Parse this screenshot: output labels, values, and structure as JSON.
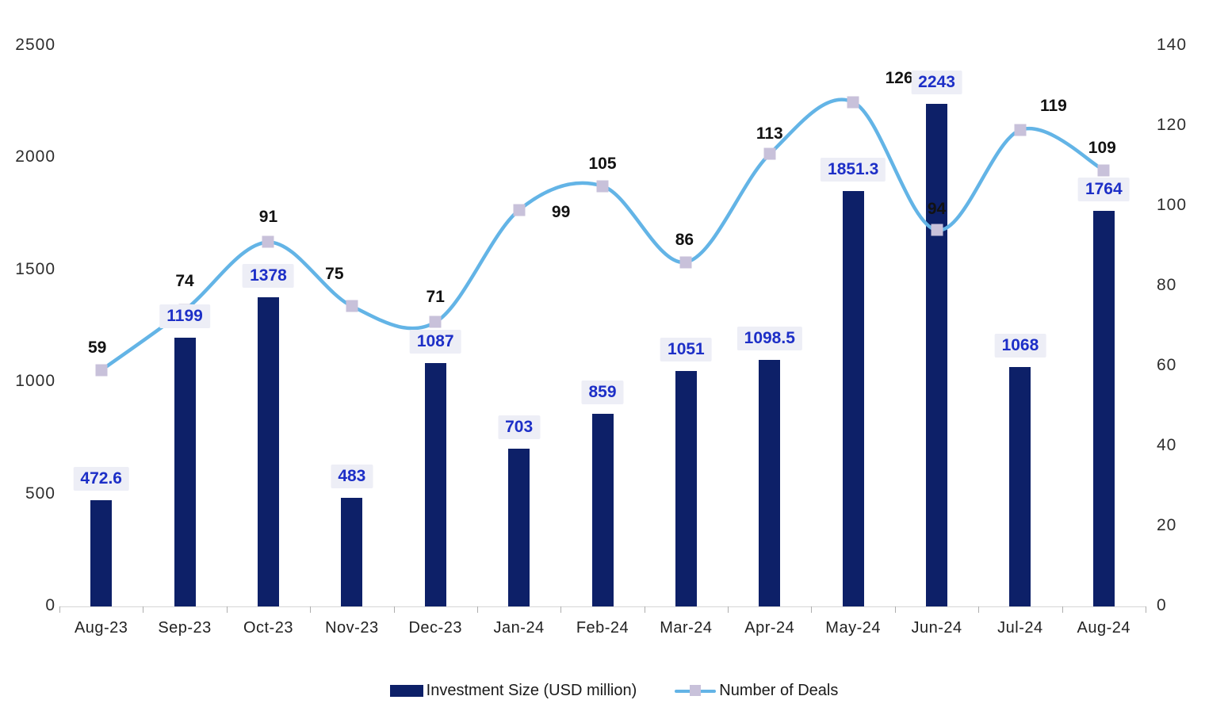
{
  "chart_data": {
    "type": "combo",
    "categories": [
      "Aug-23",
      "Sep-23",
      "Oct-23",
      "Nov-23",
      "Dec-23",
      "Jan-24",
      "Feb-24",
      "Mar-24",
      "Apr-24",
      "May-24",
      "Jun-24",
      "Jul-24",
      "Aug-24"
    ],
    "series": [
      {
        "name": "Investment Size (USD million)",
        "type": "bar",
        "axis": "left",
        "color": "#0d2068",
        "values": [
          472.6,
          1199,
          1378,
          483,
          1087,
          703,
          859,
          1051,
          1098.5,
          1851.3,
          2243,
          1068,
          1764
        ]
      },
      {
        "name": "Number of Deals",
        "type": "line",
        "axis": "right",
        "color": "#63b4e6",
        "marker_color": "#c8c1da",
        "values": [
          59,
          74,
          91,
          75,
          71,
          99,
          105,
          86,
          113,
          126,
          94,
          119,
          109
        ]
      }
    ],
    "left_axis": {
      "min": 0,
      "max": 2500,
      "step": 500,
      "ticks": [
        "0",
        "500",
        "1000",
        "1500",
        "2000",
        "2500"
      ]
    },
    "right_axis": {
      "min": 0,
      "max": 140,
      "step": 20,
      "ticks": [
        "0",
        "20",
        "40",
        "60",
        "80",
        "100",
        "120",
        "140"
      ]
    },
    "title": "",
    "xlabel": "",
    "ylabel": "",
    "grid": false,
    "legend_position": "bottom",
    "value_label_colors": {
      "bar_label_text": "#1d2fc7",
      "bar_label_bg": "#edeef6",
      "line_label_text": "#121212"
    }
  }
}
